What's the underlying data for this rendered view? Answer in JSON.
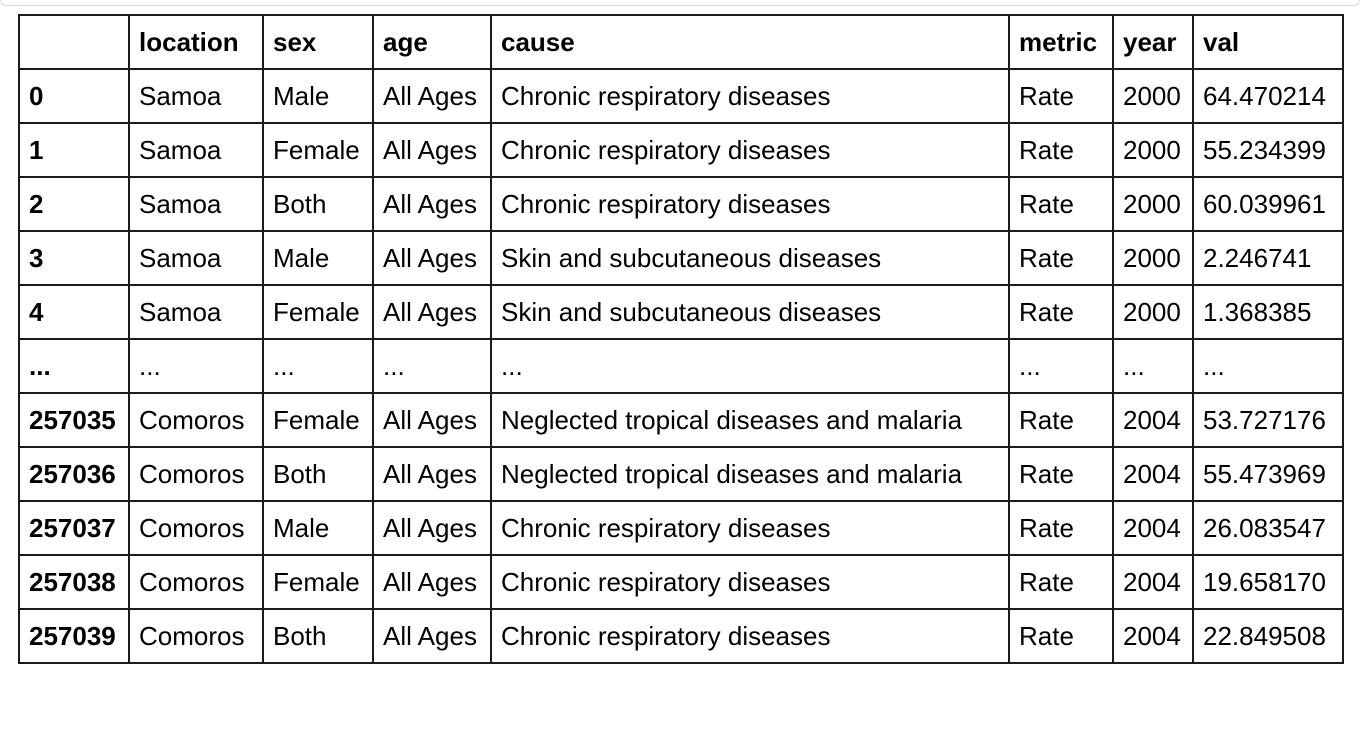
{
  "table": {
    "columns": [
      "location",
      "sex",
      "age",
      "cause",
      "metric",
      "year",
      "val"
    ],
    "rows": [
      {
        "index": "0",
        "location": "Samoa",
        "sex": "Male",
        "age": "All Ages",
        "cause": "Chronic respiratory diseases",
        "metric": "Rate",
        "year": "2000",
        "val": "64.470214"
      },
      {
        "index": "1",
        "location": "Samoa",
        "sex": "Female",
        "age": "All Ages",
        "cause": "Chronic respiratory diseases",
        "metric": "Rate",
        "year": "2000",
        "val": "55.234399"
      },
      {
        "index": "2",
        "location": "Samoa",
        "sex": "Both",
        "age": "All Ages",
        "cause": "Chronic respiratory diseases",
        "metric": "Rate",
        "year": "2000",
        "val": "60.039961"
      },
      {
        "index": "3",
        "location": "Samoa",
        "sex": "Male",
        "age": "All Ages",
        "cause": "Skin and subcutaneous diseases",
        "metric": "Rate",
        "year": "2000",
        "val": "2.246741"
      },
      {
        "index": "4",
        "location": "Samoa",
        "sex": "Female",
        "age": "All Ages",
        "cause": "Skin and subcutaneous diseases",
        "metric": "Rate",
        "year": "2000",
        "val": "1.368385"
      },
      {
        "index": "...",
        "location": "...",
        "sex": "...",
        "age": "...",
        "cause": "...",
        "metric": "...",
        "year": "...",
        "val": "..."
      },
      {
        "index": "257035",
        "location": "Comoros",
        "sex": "Female",
        "age": "All Ages",
        "cause": "Neglected tropical diseases and malaria",
        "metric": "Rate",
        "year": "2004",
        "val": "53.727176"
      },
      {
        "index": "257036",
        "location": "Comoros",
        "sex": "Both",
        "age": "All Ages",
        "cause": "Neglected tropical diseases and malaria",
        "metric": "Rate",
        "year": "2004",
        "val": "55.473969"
      },
      {
        "index": "257037",
        "location": "Comoros",
        "sex": "Male",
        "age": "All Ages",
        "cause": "Chronic respiratory diseases",
        "metric": "Rate",
        "year": "2004",
        "val": "26.083547"
      },
      {
        "index": "257038",
        "location": "Comoros",
        "sex": "Female",
        "age": "All Ages",
        "cause": "Chronic respiratory diseases",
        "metric": "Rate",
        "year": "2004",
        "val": "19.658170"
      },
      {
        "index": "257039",
        "location": "Comoros",
        "sex": "Both",
        "age": "All Ages",
        "cause": "Chronic respiratory diseases",
        "metric": "Rate",
        "year": "2004",
        "val": "22.849508"
      }
    ]
  }
}
